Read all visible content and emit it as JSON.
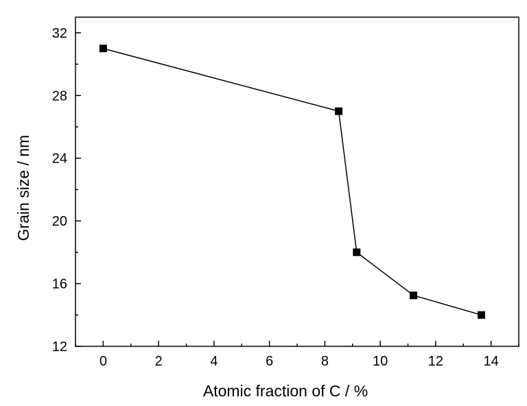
{
  "chart_data": {
    "type": "line",
    "xlabel": "Atomic fraction of C / %",
    "ylabel": "Grain size / nm",
    "xlim": [
      -1,
      15
    ],
    "ylim": [
      12,
      33
    ],
    "xticks": [
      "0",
      "2",
      "4",
      "6",
      "8",
      "10",
      "12",
      "14"
    ],
    "yticks": [
      "12",
      "16",
      "20",
      "24",
      "28",
      "32"
    ],
    "grid": false,
    "series": [
      {
        "marker": "square",
        "color": "#000000",
        "x": [
          0,
          8.5,
          9.15,
          11.2,
          13.65
        ],
        "y": [
          31.0,
          27.0,
          18.0,
          15.25,
          14.0
        ]
      }
    ]
  }
}
